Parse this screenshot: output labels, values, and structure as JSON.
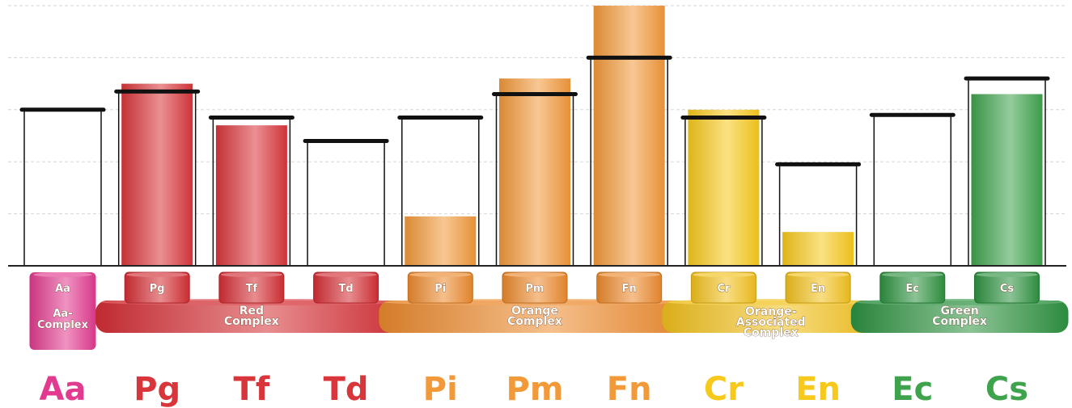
{
  "chart_data": {
    "type": "bar",
    "categories": [
      "Aa",
      "Pg",
      "Tf",
      "Td",
      "Pi",
      "Pm",
      "Fn",
      "Cr",
      "En",
      "Ec",
      "Cs"
    ],
    "series": [
      {
        "values": [
          0,
          70,
          54,
          0,
          19,
          72,
          100,
          60,
          13,
          0,
          66
        ]
      },
      {
        "values": [
          60,
          67,
          57,
          48,
          57,
          66,
          80,
          57,
          39,
          58,
          72
        ]
      }
    ],
    "ylim": [
      0,
      100
    ],
    "grid": true,
    "colors": [
      "#e23a8e",
      "#d9363b",
      "#d9363b",
      "#d9363b",
      "#f2993a",
      "#f2993a",
      "#f2993a",
      "#f7c91c",
      "#f7c91c",
      "#3fa34d",
      "#3fa34d"
    ],
    "complexes": [
      {
        "name": "Aa-Complex",
        "label_lines": [
          "Aa-",
          "Complex"
        ],
        "members": [
          "Aa"
        ],
        "color": "#e23a8e"
      },
      {
        "name": "Red Complex",
        "label_lines": [
          "Red",
          "Complex"
        ],
        "members": [
          "Pg",
          "Tf",
          "Td"
        ],
        "color": "#d42f35"
      },
      {
        "name": "Orange Complex",
        "label_lines": [
          "Orange",
          "Complex"
        ],
        "members": [
          "Pi",
          "Pm",
          "Fn"
        ],
        "color": "#ec8a2e"
      },
      {
        "name": "Orange-Associated Complex",
        "label_lines": [
          "Orange-",
          "Associated",
          "Complex"
        ],
        "members": [
          "Cr",
          "En"
        ],
        "color": "#f2c11d"
      },
      {
        "name": "Green Complex",
        "label_lines": [
          "Green",
          "Complex"
        ],
        "members": [
          "Ec",
          "Cs"
        ],
        "color": "#2e9240"
      }
    ]
  }
}
